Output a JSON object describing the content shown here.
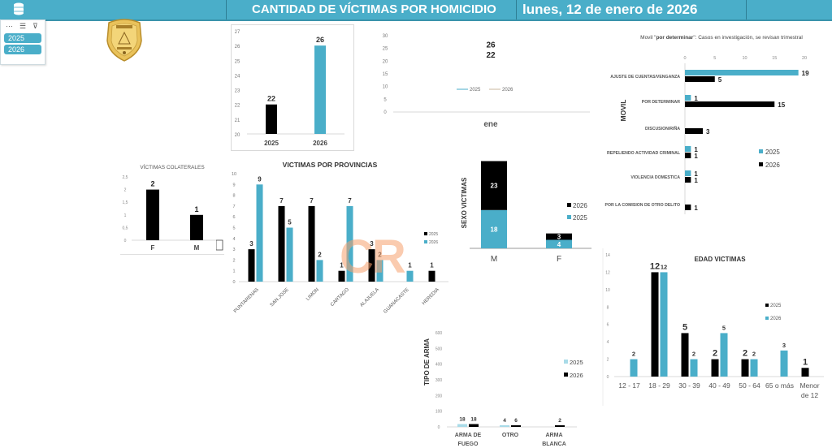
{
  "header": {
    "title": "CANTIDAD DE VÍCTIMAS POR HOMICIDIO",
    "date": "lunes, 12 de enero de 2026",
    "icon": "database-icon"
  },
  "slicer": {
    "tools": [
      "...",
      "multi-select-icon",
      "clear-filter-icon"
    ],
    "items": [
      {
        "label": "2025"
      },
      {
        "label": "2026"
      }
    ]
  },
  "logo": {
    "name": "police-badge"
  },
  "watermark": {
    "text": "CR"
  },
  "colors": {
    "black": "#000000",
    "blue": "#4aaec9",
    "light_blue": "#a9dbe8"
  },
  "chart_data": [
    {
      "id": "total",
      "type": "bar",
      "categories": [
        "2025",
        "2026"
      ],
      "values": [
        22,
        26
      ],
      "colors": [
        "#000000",
        "#4aaec9"
      ],
      "ylim": [
        20,
        27
      ],
      "yticks": [
        20,
        21,
        22,
        23,
        24,
        25,
        26,
        27
      ],
      "title": "",
      "xlabel": "",
      "ylabel": ""
    },
    {
      "id": "monthly",
      "type": "line",
      "categories": [
        "ene"
      ],
      "series": [
        {
          "name": "2025",
          "values": [
            22
          ]
        },
        {
          "name": "2026",
          "values": [
            26
          ]
        }
      ],
      "ylim": [
        0,
        30
      ],
      "yticks": [
        0,
        5,
        10,
        15,
        20,
        25,
        30
      ],
      "legend": "center"
    },
    {
      "id": "movil",
      "type": "bar",
      "orientation": "horizontal",
      "title": "Movil \"por determinar\": Casos en investigación, se revisan trimestral",
      "title_bold_part": "por determinar",
      "ylabel": "MOVIL",
      "categories": [
        "AJUSTE DE CUENTAS/VENGANZA",
        "POR DETERMINAR",
        "DISCUSION/RIÑA",
        "REPELIENDO ACTIVIDAD CRIMINAL",
        "VIOLENCIA DOMESTICA",
        "POR LA COMISION DE OTRO DELITO"
      ],
      "series": [
        {
          "name": "2025",
          "color": "#4aaec9",
          "values": [
            19,
            1,
            null,
            1,
            1,
            null
          ]
        },
        {
          "name": "2026",
          "color": "#000000",
          "values": [
            5,
            15,
            3,
            1,
            1,
            1
          ]
        }
      ],
      "xlim": [
        0,
        20
      ],
      "xticks": [
        0,
        5,
        10,
        15,
        20
      ],
      "legend": "right"
    },
    {
      "id": "colaterales",
      "type": "bar",
      "title": "VÍCTIMAS COLATERALES",
      "categories": [
        "F",
        "M"
      ],
      "values": [
        2,
        1
      ],
      "ylim": [
        0,
        2.5
      ],
      "yticks": [
        "0",
        "0,5",
        "1",
        "1,5",
        "2",
        "2,5"
      ]
    },
    {
      "id": "provincias",
      "type": "bar",
      "title": "VICTIMAS POR PROVINCIAS",
      "categories": [
        "PUNTARENAS",
        "SAN JOSE",
        "LIMON",
        "CARTAGO",
        "ALAJUELA",
        "GUANACASTE",
        "HEREDIA"
      ],
      "series": [
        {
          "name": "2025",
          "color": "#000000",
          "values": [
            3,
            7,
            7,
            1,
            3,
            null,
            1
          ]
        },
        {
          "name": "2026",
          "color": "#4aaec9",
          "values": [
            9,
            5,
            2,
            7,
            2,
            1,
            null
          ]
        }
      ],
      "ylim": [
        0,
        10
      ],
      "yticks": [
        0,
        1,
        2,
        3,
        4,
        5,
        6,
        7,
        8,
        9,
        10
      ],
      "legend": "right"
    },
    {
      "id": "sexo",
      "type": "bar",
      "stacked": true,
      "ylabel": "SEXO VICTIMAS",
      "categories": [
        "M",
        "F"
      ],
      "series": [
        {
          "name": "2025",
          "color": "#4aaec9",
          "values": [
            18,
            4
          ]
        },
        {
          "name": "2026",
          "color": "#000000",
          "values": [
            23,
            3
          ]
        }
      ],
      "legend": "right"
    },
    {
      "id": "edad",
      "type": "bar",
      "title": "EDAD VICTIMAS",
      "categories": [
        "12 - 17",
        "18 - 29",
        "30 - 39",
        "40 - 49",
        "50 - 64",
        "65 o más",
        "Menor de 12"
      ],
      "series": [
        {
          "name": "2025",
          "color": "#000000",
          "values": [
            null,
            12,
            5,
            2,
            2,
            null,
            1
          ]
        },
        {
          "name": "2026",
          "color": "#4aaec9",
          "values": [
            2,
            12,
            2,
            5,
            2,
            3,
            null
          ]
        }
      ],
      "ylim": [
        0,
        14
      ],
      "yticks": [
        0,
        2,
        4,
        6,
        8,
        10,
        12,
        14
      ],
      "legend": "right"
    },
    {
      "id": "arma",
      "type": "bar",
      "ylabel": "TIPO DE ARMA",
      "categories": [
        "ARMA DE FUEGO",
        "OTRO",
        "ARMA BLANCA"
      ],
      "series": [
        {
          "name": "2025",
          "color": "#a9dbe8",
          "values": [
            18,
            4,
            null
          ]
        },
        {
          "name": "2026",
          "color": "#000000",
          "values": [
            18,
            6,
            2
          ]
        }
      ],
      "ylim": [
        0,
        600
      ],
      "yticks": [
        0,
        100,
        200,
        300,
        400,
        500,
        600
      ],
      "legend": "right"
    }
  ]
}
